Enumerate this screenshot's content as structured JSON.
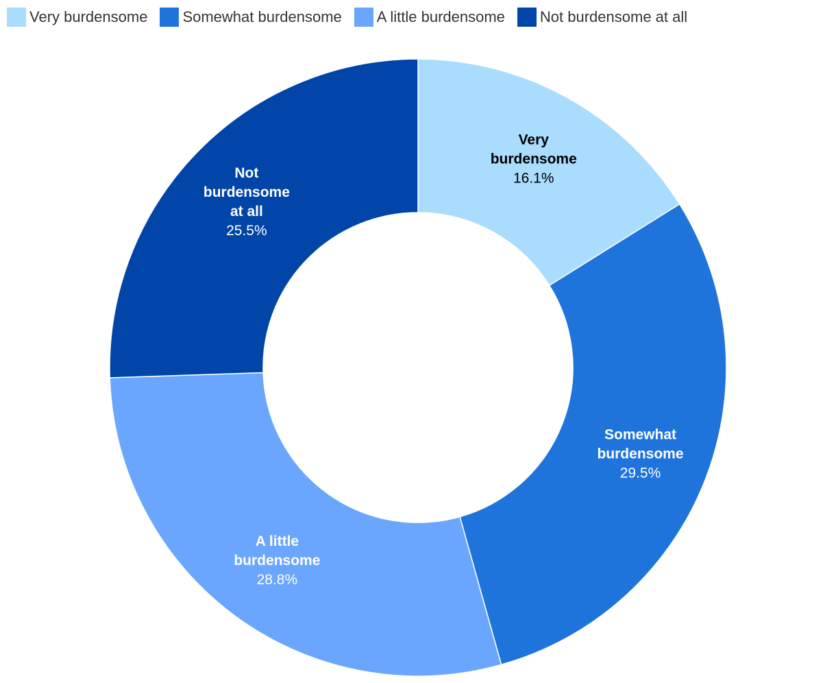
{
  "chart_data": {
    "type": "pie",
    "variant": "donut",
    "title": "",
    "legend_position": "top-left",
    "slices": [
      {
        "name": "Very burdensome",
        "label_lines": [
          "Very",
          "burdensome"
        ],
        "value": 16.1,
        "value_label": "16.1%",
        "color": "#aadcfe",
        "text_color": "#000000"
      },
      {
        "name": "Somewhat burdensome",
        "label_lines": [
          "Somewhat",
          "burdensome"
        ],
        "value": 29.5,
        "value_label": "29.5%",
        "color": "#1f74dc",
        "text_color": "#ffffff"
      },
      {
        "name": "A little burdensome",
        "label_lines": [
          "A little",
          "burdensome"
        ],
        "value": 28.8,
        "value_label": "28.8%",
        "color": "#6aa6fd",
        "text_color": "#ffffff"
      },
      {
        "name": "Not burdensome at all",
        "label_lines": [
          "Not",
          "burdensome",
          "at all"
        ],
        "value": 25.5,
        "value_label": "25.5%",
        "color": "#0045a7",
        "text_color": "#ffffff"
      }
    ]
  }
}
